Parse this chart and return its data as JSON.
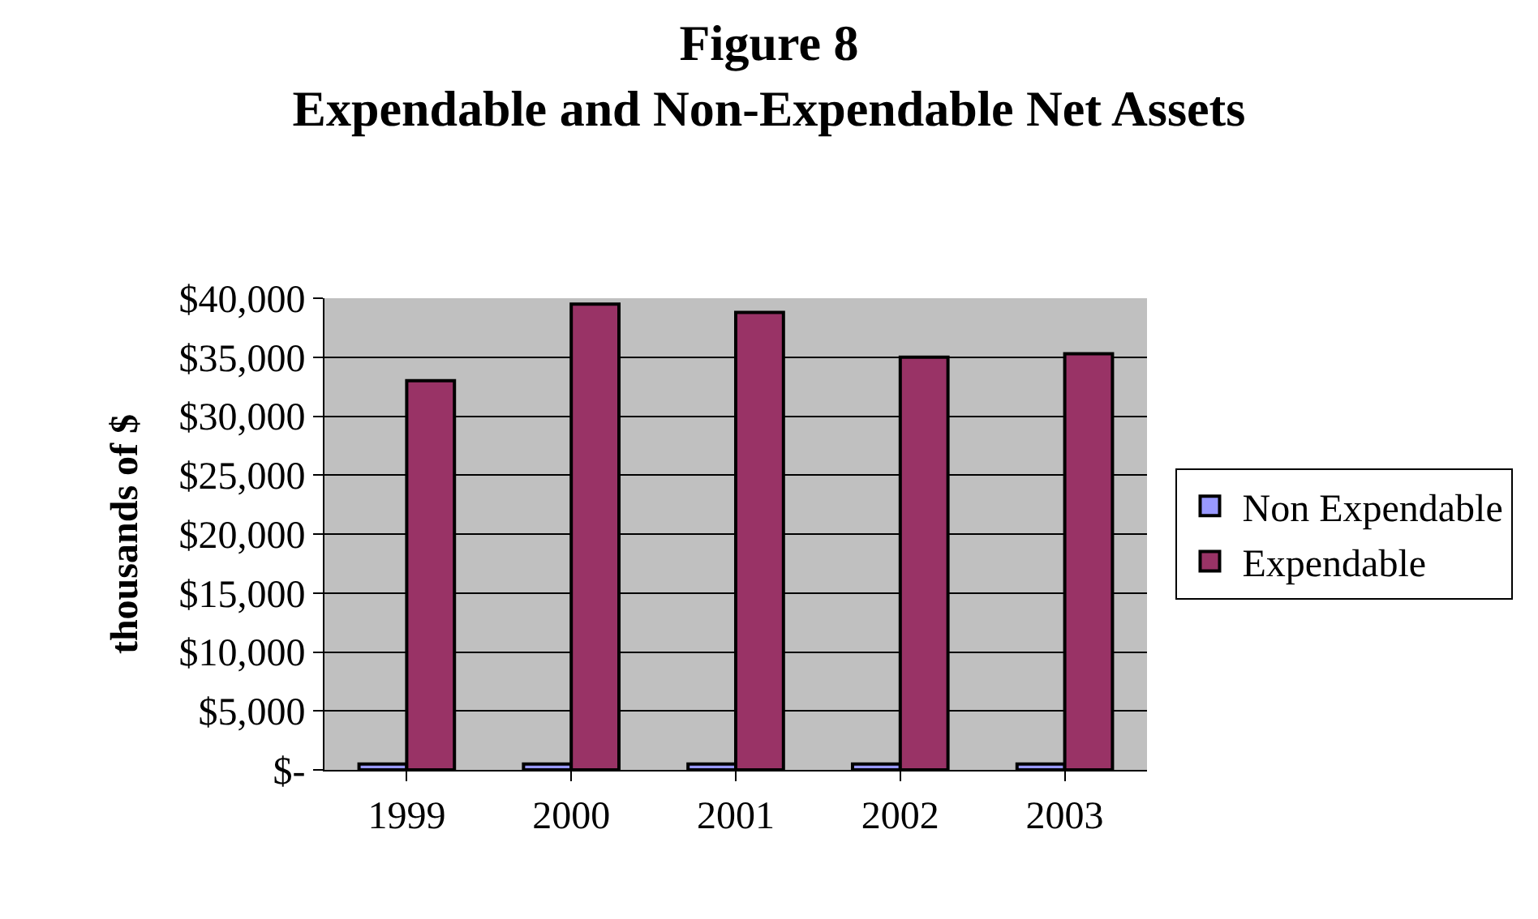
{
  "chart_data": {
    "type": "bar",
    "title": "Figure 8\nExpendable and Non-Expendable Net Assets",
    "ylabel": "thousands of $",
    "categories": [
      "1999",
      "2000",
      "2001",
      "2002",
      "2003"
    ],
    "series": [
      {
        "name": "Non Expendable",
        "color": "#9999ff",
        "values": [
          500,
          500,
          500,
          500,
          500
        ]
      },
      {
        "name": "Expendable",
        "color": "#993366",
        "values": [
          33000,
          39500,
          38800,
          35000,
          35300
        ]
      }
    ],
    "ylim": [
      0,
      40000
    ],
    "yticks": [
      {
        "value": 0,
        "label": "$-"
      },
      {
        "value": 5000,
        "label": "$5,000"
      },
      {
        "value": 10000,
        "label": "$10,000"
      },
      {
        "value": 15000,
        "label": "$15,000"
      },
      {
        "value": 20000,
        "label": "$20,000"
      },
      {
        "value": 25000,
        "label": "$25,000"
      },
      {
        "value": 30000,
        "label": "$30,000"
      },
      {
        "value": 35000,
        "label": "$35,000"
      },
      {
        "value": 40000,
        "label": "$40,000"
      }
    ],
    "grid": "y",
    "legend": "right"
  }
}
